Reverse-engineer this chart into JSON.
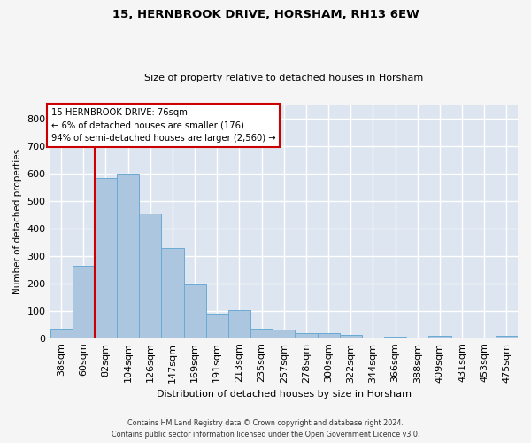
{
  "title": "15, HERNBROOK DRIVE, HORSHAM, RH13 6EW",
  "subtitle": "Size of property relative to detached houses in Horsham",
  "xlabel": "Distribution of detached houses by size in Horsham",
  "ylabel": "Number of detached properties",
  "bar_color": "#adc6e0",
  "bar_edge_color": "#6aaad4",
  "background_color": "#dde6f0",
  "grid_color": "#ffffff",
  "categories": [
    "38sqm",
    "60sqm",
    "82sqm",
    "104sqm",
    "126sqm",
    "147sqm",
    "169sqm",
    "191sqm",
    "213sqm",
    "235sqm",
    "257sqm",
    "278sqm",
    "300sqm",
    "322sqm",
    "344sqm",
    "366sqm",
    "388sqm",
    "409sqm",
    "431sqm",
    "453sqm",
    "475sqm"
  ],
  "values": [
    35,
    265,
    585,
    600,
    455,
    330,
    195,
    90,
    102,
    35,
    30,
    17,
    17,
    12,
    0,
    7,
    0,
    8,
    0,
    0,
    8
  ],
  "ylim": [
    0,
    850
  ],
  "yticks": [
    0,
    100,
    200,
    300,
    400,
    500,
    600,
    700,
    800
  ],
  "vline_x": 1.5,
  "annotation_text": "15 HERNBROOK DRIVE: 76sqm\n← 6% of detached houses are smaller (176)\n94% of semi-detached houses are larger (2,560) →",
  "annotation_box_color": "#ffffff",
  "annotation_border_color": "#cc0000",
  "vline_color": "#cc0000",
  "footer1": "Contains HM Land Registry data © Crown copyright and database right 2024.",
  "footer2": "Contains public sector information licensed under the Open Government Licence v3.0."
}
